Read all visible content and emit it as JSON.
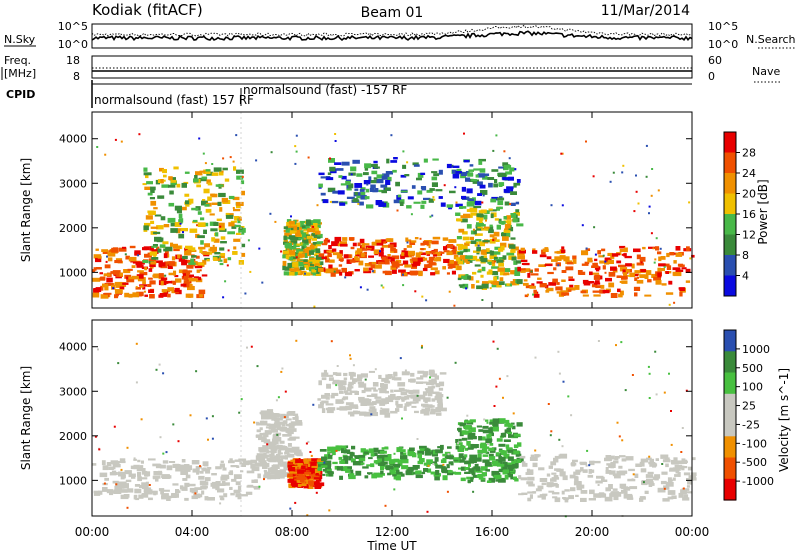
{
  "header": {
    "station": "Kodiak (fitACF)",
    "beam": "Beam 01",
    "date": "11/Mar/2014"
  },
  "top_panels": {
    "nsky_label": "N.Sky",
    "nsky_ticks": [
      "10^5",
      "10^0"
    ],
    "nsearch_label": "N.Search",
    "nsearch_ticks": [
      "10^5",
      "10^0"
    ],
    "freq_label_1": "Freq.",
    "freq_label_2": "[MHz]",
    "freq_ticks": [
      "18",
      "8"
    ],
    "nave_label": "Nave",
    "nave_ticks": [
      "60",
      "0"
    ],
    "cpid_label": "CPID",
    "cpid_text_1": "normalsound (fast) 157 RF",
    "cpid_text_2": "normalsound (fast) -157 RF"
  },
  "x_axis": {
    "label": "Time UT",
    "ticks": [
      "00:00",
      "04:00",
      "08:00",
      "12:00",
      "16:00",
      "20:00",
      "00:00"
    ]
  },
  "chart_data": [
    {
      "type": "heatmap",
      "title": "",
      "ylabel": "Slant Range [km]",
      "xlabel": "Time UT",
      "x_range_hours": [
        0,
        24
      ],
      "ylim": [
        200,
        4600
      ],
      "yticks": [
        1000,
        2000,
        3000,
        4000
      ],
      "colorbar": {
        "label": "Power [dB]",
        "ticks": [
          "28",
          "24",
          "20",
          "16",
          "12",
          "8",
          "4"
        ],
        "colors": [
          "#0a0ae0",
          "#2a4fb0",
          "#3a8a3a",
          "#48b848",
          "#f0c000",
          "#f09000",
          "#f05000",
          "#e80000"
        ]
      },
      "regions": [
        {
          "t": [
            0.0,
            4.5
          ],
          "range": [
            500,
            1600
          ],
          "level": "high"
        },
        {
          "t": [
            2.0,
            6.0
          ],
          "range": [
            1200,
            3400
          ],
          "level": "medium"
        },
        {
          "t": [
            7.6,
            9.0
          ],
          "range": [
            1000,
            2200
          ],
          "level": "medium"
        },
        {
          "t": [
            9.0,
            14.5
          ],
          "range": [
            1000,
            1800
          ],
          "level": "high"
        },
        {
          "t": [
            9.0,
            17.0
          ],
          "range": [
            2500,
            3600
          ],
          "level": "low"
        },
        {
          "t": [
            14.5,
            17.0
          ],
          "range": [
            700,
            2500
          ],
          "level": "medium"
        },
        {
          "t": [
            17.0,
            24.0
          ],
          "range": [
            500,
            1600
          ],
          "level": "high"
        }
      ]
    },
    {
      "type": "heatmap",
      "title": "",
      "ylabel": "Slant Range [km]",
      "xlabel": "Time UT",
      "x_range_hours": [
        0,
        24
      ],
      "ylim": [
        200,
        4600
      ],
      "yticks": [
        1000,
        2000,
        3000,
        4000
      ],
      "colorbar": {
        "label": "Velocity [m s^-1]",
        "ticks": [
          "1000",
          "500",
          "100",
          "25",
          "-25",
          "-100",
          "-500",
          "-1000"
        ],
        "colors": [
          "#e80000",
          "#f05000",
          "#f09000",
          "#c8c8c0",
          "#c8c8c0",
          "#48c040",
          "#3a8a3a",
          "#2a4fb0"
        ]
      },
      "regions": [
        {
          "t": [
            0.0,
            6.5
          ],
          "range": [
            600,
            1500
          ],
          "level": "ground"
        },
        {
          "t": [
            6.5,
            8.2
          ],
          "range": [
            1100,
            2600
          ],
          "level": "ground"
        },
        {
          "t": [
            7.8,
            9.0
          ],
          "range": [
            900,
            1500
          ],
          "level": "negative"
        },
        {
          "t": [
            9.0,
            14.5
          ],
          "range": [
            1100,
            1800
          ],
          "level": "positive"
        },
        {
          "t": [
            9.0,
            14.0
          ],
          "range": [
            2500,
            3500
          ],
          "level": "ground"
        },
        {
          "t": [
            14.5,
            17.0
          ],
          "range": [
            1000,
            2400
          ],
          "level": "positive"
        },
        {
          "t": [
            17.0,
            24.0
          ],
          "range": [
            600,
            1600
          ],
          "level": "ground"
        }
      ]
    }
  ]
}
